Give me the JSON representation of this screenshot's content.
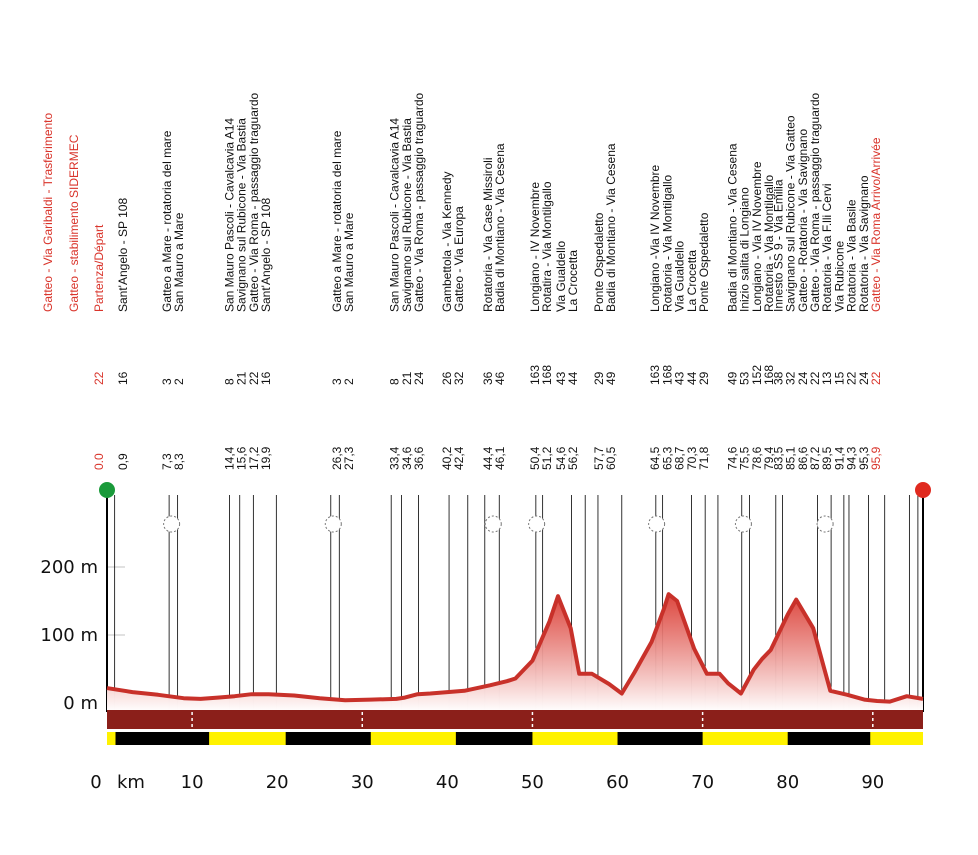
{
  "colors": {
    "profile_line": "#c8312a",
    "profile_fill_top": "#d9342b",
    "profile_fill_bottom": "#ffffff",
    "band": "#8b1f1a",
    "label_red": "#d9342b",
    "start_dot": "#1a9a3a",
    "finish_dot": "#e02a1f",
    "km_black": "#000000",
    "km_yellow": "#fff200"
  },
  "chart_data": {
    "type": "area",
    "title": "",
    "xlabel": "km",
    "ylabel": "",
    "xlim": [
      0,
      95.9
    ],
    "ylim": [
      0,
      290
    ],
    "y_ticks": [
      {
        "value": 0,
        "label": "0 m"
      },
      {
        "value": 100,
        "label": "100 m"
      },
      {
        "value": 200,
        "label": "200 m"
      }
    ],
    "x_ticks": [
      {
        "value": 0,
        "label": "0"
      },
      {
        "value": 10,
        "label": "10"
      },
      {
        "value": 20,
        "label": "20"
      },
      {
        "value": 30,
        "label": "30"
      },
      {
        "value": 40,
        "label": "40"
      },
      {
        "value": 50,
        "label": "50"
      },
      {
        "value": 60,
        "label": "60"
      },
      {
        "value": 70,
        "label": "70"
      },
      {
        "value": 80,
        "label": "80"
      },
      {
        "value": 90,
        "label": "90"
      }
    ],
    "x_unit_label": "km",
    "profile": {
      "x": [
        0,
        3,
        6,
        9,
        11,
        13,
        15,
        17,
        19,
        22,
        25,
        28,
        31,
        34,
        35,
        36.5,
        38,
        40,
        42,
        45,
        47,
        48,
        50,
        52,
        53,
        54.5,
        55.5,
        57,
        59,
        60.5,
        62,
        64,
        65.5,
        66,
        67,
        69,
        70.5,
        72,
        73,
        74.5,
        76,
        77,
        78,
        80,
        81,
        83,
        85,
        87,
        89,
        90.5,
        92,
        94,
        95.9
      ],
      "y": [
        22,
        16,
        12,
        7,
        6,
        8,
        10,
        13,
        13,
        11,
        7,
        4,
        5,
        6,
        8,
        13,
        14,
        16,
        18,
        26,
        32,
        36,
        62,
        120,
        157,
        110,
        43,
        43,
        28,
        14,
        45,
        90,
        140,
        160,
        150,
        80,
        43,
        43,
        29,
        14,
        49,
        65,
        78,
        130,
        152,
        110,
        18,
        12,
        5,
        3,
        2,
        10,
        6
      ]
    },
    "points": [
      {
        "km": "0.0",
        "alt": "22",
        "labels": [
          "Partenza/Départ"
        ],
        "red": true,
        "circle": false
      },
      {
        "km": "0,9",
        "alt": "16",
        "labels": [
          "Sant'Angelo - SP 108"
        ],
        "red": false,
        "circle": false
      },
      {
        "km": "7,3\n8,3",
        "alt": "3\n2",
        "labels": [
          "Gatteo a Mare - rotatoria del mare",
          "San Mauro a Mare"
        ],
        "red": false,
        "circle": true
      },
      {
        "km": "14,4\n15,6\n17,2\n19,9",
        "alt": "8\n21\n22\n16",
        "labels": [
          "San Mauro Pascoli - Cavalcavia A14",
          "Savignano sul Rubicone - Via Bastia",
          "Gatteo - Via Roma - passaggio traguardo",
          "Sant'Angelo - SP 108"
        ],
        "red": false,
        "circle": false
      },
      {
        "km": "26,3\n27,3",
        "alt": "3\n2",
        "labels": [
          "Gatteo a Mare - rotatoria del mare",
          "San Mauro a Mare"
        ],
        "red": false,
        "circle": true
      },
      {
        "km": "33,4\n34,6\n36,6",
        "alt": "8\n21\n24",
        "labels": [
          "San Mauro Pascoli - Cavalcavia A14",
          "Savignano sul Rubicone - Via Bastia",
          "Gatteo - Via Roma - passaggio traguardo"
        ],
        "red": false,
        "circle": false
      },
      {
        "km": "40,2\n42,4",
        "alt": "26\n32",
        "labels": [
          "Gambettola - Via Kennedy",
          "Gatteo - Via Europa"
        ],
        "red": false,
        "circle": false
      },
      {
        "km": "44,4\n46,1",
        "alt": "36\n46",
        "labels": [
          "Rotatoria - Via Case Missiroli",
          "Badia di Montiano - Via Cesena"
        ],
        "red": false,
        "circle": true
      },
      {
        "km": "50,4\n51,2",
        "alt": "163\n168",
        "labels": [
          "Longiano - IV Novembre",
          "Rotatira - Via Montilgallo"
        ],
        "red": false,
        "circle": true
      },
      {
        "km": "54,6\n56,2",
        "alt": "43\n44",
        "labels": [
          "Via Gualdello",
          "La Crocetta"
        ],
        "red": false,
        "circle": false
      },
      {
        "km": "57,7\n60,5",
        "alt": "29\n49",
        "labels": [
          "Ponte Ospedaletto",
          "Badia di Montiano - Via Cesena"
        ],
        "red": false,
        "circle": false
      },
      {
        "km": "64,5\n65,3\n68,7\n70,3\n71,8",
        "alt": "163\n168\n43\n44\n29",
        "labels": [
          "Longiano -Via IV Novembre",
          "Rotatoria - Via Montilgallo",
          "Via Gualdello",
          "La Crocetta",
          "Ponte Ospedaletto"
        ],
        "red": false,
        "circle": true
      },
      {
        "km": "74,6\n75,5\n78,6\n79,4",
        "alt": "49\n53\n152\n168",
        "labels": [
          "Badia di Montiano - Via Cesena",
          "Inizio salita di Longiano",
          "Longiano - Via IV Novembre",
          "Rotatoria - Via Montilgallo"
        ],
        "red": false,
        "circle": true
      },
      {
        "km": "83,5\n85,1\n86,6\n87,2\n89,5\n91,4\n94,3\n95,3\n95,9",
        "alt": "38\n32\n24\n22\n13\n15\n22\n24\n22",
        "labels": [
          "Innesto SS 9 - Via Emilia",
          "Savignano sul Rubicone - Via Gatteo",
          "Gatteo - Rotatoria - Via Savignano",
          "Gatteo - Via Roma - passaggio traguardo",
          "Rotatoria - Via F.lli Cervi",
          "Via Rubicone",
          "Rotatoria - Via Basile",
          "Rotatoria - Via Savignano",
          "Gatteo - Via Roma Arrivo/Arrivée"
        ],
        "red": false,
        "circle": true
      }
    ],
    "header_labels": [
      "Gatteo - Via Garibaldi - Trasferimento",
      "Gatteo - stabilimento SIDERMEC"
    ]
  }
}
